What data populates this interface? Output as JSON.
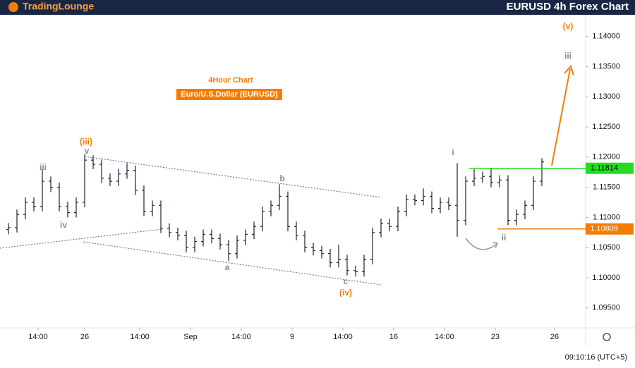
{
  "chart_data": {
    "type": "ohlc",
    "brand": "TradingLounge",
    "title": "EURUSD 4h Forex Chart",
    "subtitle": "4Hour Chart",
    "instrument": "Euro/U.S.Dollar (EURUSD)",
    "timestamp": "09:10:16 (UTC+5)",
    "color": "#1e222d",
    "x": [
      2,
      4,
      6,
      8,
      10,
      12,
      14,
      16,
      18,
      20,
      22,
      24,
      26,
      28,
      30,
      32,
      34,
      36,
      38,
      40,
      42,
      44,
      46,
      48,
      50,
      52,
      54,
      56,
      58,
      60,
      62,
      64,
      66,
      68,
      70,
      72,
      74,
      76,
      78,
      80,
      82,
      84,
      86,
      88,
      90,
      92,
      94,
      96,
      98,
      100,
      102,
      104,
      106,
      108,
      110,
      112,
      114,
      116,
      118,
      120,
      122,
      124,
      126,
      128
    ],
    "open": [
      1.108,
      1.1083,
      1.1105,
      1.1125,
      1.1118,
      1.116,
      1.115,
      1.1118,
      1.1108,
      1.1125,
      1.1195,
      1.1188,
      1.1165,
      1.116,
      1.1172,
      1.1178,
      1.1145,
      1.111,
      1.112,
      1.1082,
      1.1075,
      1.107,
      1.105,
      1.106,
      1.1072,
      1.1065,
      1.1055,
      1.104,
      1.1062,
      1.1072,
      1.1085,
      1.111,
      1.112,
      1.1135,
      1.1085,
      1.107,
      1.105,
      1.1045,
      1.104,
      1.1025,
      1.103,
      1.1012,
      1.101,
      1.103,
      1.1075,
      1.109,
      1.1085,
      1.111,
      1.113,
      1.1128,
      1.1135,
      1.1115,
      1.1125,
      1.112,
      1.1095,
      1.116,
      1.1165,
      1.1168,
      1.1158,
      1.1162,
      1.1095,
      1.1105,
      1.112,
      1.116
    ],
    "high": [
      1.1091,
      1.1113,
      1.1133,
      1.1133,
      1.118,
      1.1168,
      1.1158,
      1.1126,
      1.1133,
      1.1205,
      1.1203,
      1.1196,
      1.1173,
      1.118,
      1.119,
      1.1186,
      1.1153,
      1.1128,
      1.1128,
      1.109,
      1.1083,
      1.1078,
      1.1068,
      1.108,
      1.108,
      1.1073,
      1.1063,
      1.107,
      1.108,
      1.1093,
      1.1118,
      1.1128,
      1.1155,
      1.1143,
      1.1093,
      1.1078,
      1.1058,
      1.1053,
      1.1048,
      1.1055,
      1.1038,
      1.102,
      1.1038,
      1.1083,
      1.1098,
      1.1098,
      1.1118,
      1.1138,
      1.1138,
      1.1148,
      1.1143,
      1.1133,
      1.1133,
      1.119,
      1.1168,
      1.118,
      1.1176,
      1.1182,
      1.117,
      1.117,
      1.1113,
      1.1128,
      1.1168,
      1.1198
    ],
    "low": [
      1.1072,
      1.1075,
      1.1097,
      1.111,
      1.111,
      1.1142,
      1.111,
      1.11,
      1.11,
      1.1117,
      1.118,
      1.1157,
      1.1152,
      1.1152,
      1.1164,
      1.1137,
      1.1102,
      1.1102,
      1.1074,
      1.1067,
      1.1062,
      1.1042,
      1.1042,
      1.1052,
      1.1057,
      1.1047,
      1.1028,
      1.1032,
      1.1054,
      1.1064,
      1.1077,
      1.1102,
      1.1112,
      1.1077,
      1.1062,
      1.1042,
      1.1037,
      1.1032,
      1.1017,
      1.1017,
      1.1004,
      1.1002,
      1.1002,
      1.1022,
      1.1067,
      1.1077,
      1.1077,
      1.1102,
      1.112,
      1.112,
      1.1107,
      1.1107,
      1.1112,
      1.1068,
      1.1087,
      1.1152,
      1.1157,
      1.115,
      1.115,
      1.1087,
      1.1087,
      1.1097,
      1.1112,
      1.1152
    ],
    "close": [
      1.1083,
      1.1105,
      1.1125,
      1.1118,
      1.116,
      1.115,
      1.1118,
      1.1108,
      1.1125,
      1.1195,
      1.1188,
      1.1165,
      1.116,
      1.1172,
      1.1178,
      1.1145,
      1.111,
      1.112,
      1.1082,
      1.1075,
      1.107,
      1.105,
      1.106,
      1.1072,
      1.1065,
      1.1055,
      1.104,
      1.1062,
      1.1072,
      1.1085,
      1.111,
      1.112,
      1.1135,
      1.1085,
      1.107,
      1.105,
      1.1045,
      1.104,
      1.1025,
      1.103,
      1.1012,
      1.101,
      1.103,
      1.1075,
      1.109,
      1.1085,
      1.111,
      1.113,
      1.1128,
      1.1135,
      1.1115,
      1.1125,
      1.112,
      1.1095,
      1.116,
      1.1165,
      1.1168,
      1.1158,
      1.1162,
      1.1095,
      1.1105,
      1.112,
      1.116,
      1.1192
    ],
    "xlim": [
      0,
      138
    ],
    "xticks": [
      {
        "value": 9,
        "label": "14:00"
      },
      {
        "value": 20,
        "label": "26"
      },
      {
        "value": 33,
        "label": "14:00"
      },
      {
        "value": 45,
        "label": "Sep"
      },
      {
        "value": 57,
        "label": "14:00"
      },
      {
        "value": 69,
        "label": "9"
      },
      {
        "value": 81,
        "label": "14:00"
      },
      {
        "value": 93,
        "label": "16"
      },
      {
        "value": 105,
        "label": "14:00"
      },
      {
        "value": 117,
        "label": "23"
      },
      {
        "value": 131,
        "label": "26"
      }
    ],
    "ylim": [
      1.0917,
      1.1437
    ],
    "yticks": [
      {
        "value": 1.095,
        "label": "1.09500"
      },
      {
        "value": 1.1,
        "label": "1.10000"
      },
      {
        "value": 1.105,
        "label": "1.10500"
      },
      {
        "value": 1.11,
        "label": "1.11000"
      },
      {
        "value": 1.115,
        "label": "1.11500"
      },
      {
        "value": 1.12,
        "label": "1.12000"
      },
      {
        "value": 1.125,
        "label": "1.12500"
      },
      {
        "value": 1.13,
        "label": "1.13000"
      },
      {
        "value": 1.135,
        "label": "1.13500"
      },
      {
        "value": 1.14,
        "label": "1.14000"
      }
    ],
    "levels": [
      {
        "value": 1.11814,
        "color": "#22dd22"
      },
      {
        "value": 1.10809,
        "color": "#f57c00"
      }
    ],
    "annotations": [
      {
        "text": "iii",
        "color": "#8a8a8a"
      },
      {
        "text": "iv",
        "color": "#8a8a8a"
      },
      {
        "text": "(iii)",
        "color": "#f57c00"
      },
      {
        "text": "v",
        "color": "#8a8a8a"
      },
      {
        "text": "b",
        "color": "#8a8a8a"
      },
      {
        "text": "a",
        "color": "#8a8a8a"
      },
      {
        "text": "c",
        "color": "#8a8a8a"
      },
      {
        "text": "(iv)",
        "color": "#f57c00"
      },
      {
        "text": "i",
        "color": "#8a8a8a"
      },
      {
        "text": "ii",
        "color": "#8a8a8a"
      },
      {
        "text": "(v)",
        "color": "#f57c00"
      },
      {
        "text": "iii",
        "color": "#8a8a8a"
      }
    ]
  }
}
